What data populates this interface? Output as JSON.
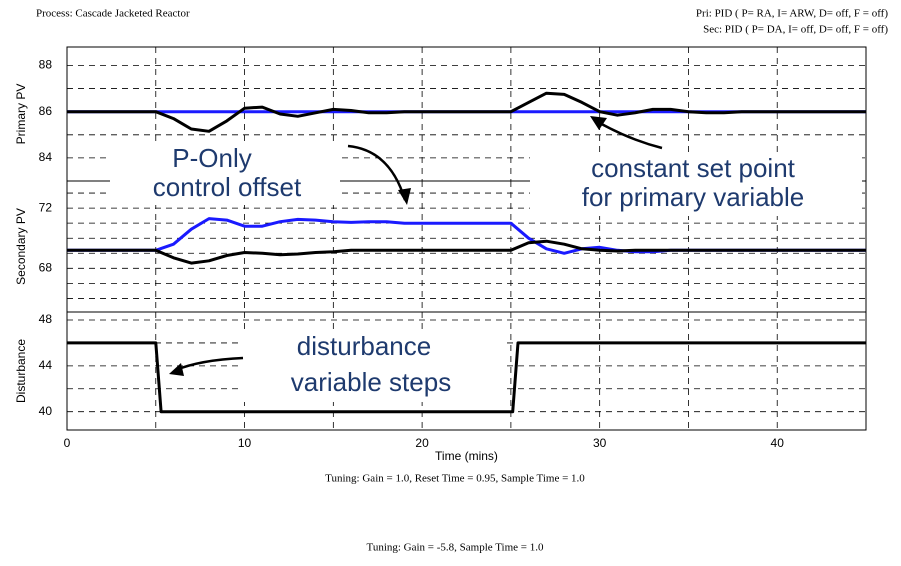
{
  "process": "Process: Cascade Jacketed Reactor",
  "primary_controller": "Pri: PID ( P= RA, I= ARW, D= off, F = off)",
  "secondary_controller": "Sec: PID ( P= DA, I= off, D= off, F = off)",
  "tunings": [
    "Tuning: Gain = 1.0, Reset Time = 0.95, Sample Time = 1.0",
    "Tuning: Gain = -5.8, Sample Time = 1.0"
  ],
  "chart_data": [
    {
      "type": "line",
      "ylabel": "Primary PV",
      "x": [
        0,
        1,
        2,
        3,
        4,
        5,
        6,
        7,
        8,
        9,
        10,
        11,
        12,
        13,
        14,
        15,
        16,
        17,
        18,
        19,
        20,
        21,
        22,
        23,
        24,
        25,
        26,
        27,
        28,
        29,
        30,
        31,
        32,
        33,
        34,
        35,
        36,
        37,
        38,
        39,
        40,
        41,
        42,
        43,
        44,
        45
      ],
      "xlim": [
        0,
        45
      ],
      "xticks": [
        0,
        10,
        20,
        30,
        40
      ],
      "xminor": [
        5,
        15,
        25,
        35
      ],
      "ylim": [
        83,
        88.8
      ],
      "yticks": [
        84,
        86,
        88
      ],
      "yminor": [
        85,
        87
      ],
      "series": [
        {
          "color": "#1a1aff",
          "values": [
            86,
            86,
            86,
            86,
            86,
            86,
            86,
            86,
            86,
            86,
            86,
            86,
            86,
            86,
            86,
            86,
            86,
            86,
            86,
            86,
            86,
            86,
            86,
            86,
            86,
            86,
            86,
            86,
            86,
            86,
            86,
            86,
            86,
            86,
            86,
            86,
            86,
            86,
            86,
            86,
            86,
            86,
            86,
            86,
            86,
            86
          ]
        },
        {
          "color": "#000000",
          "values": [
            86,
            86,
            86,
            86,
            86,
            86,
            85.7,
            85.25,
            85.15,
            85.6,
            86.15,
            86.2,
            85.9,
            85.8,
            85.95,
            86.1,
            86.05,
            85.95,
            85.95,
            86,
            86,
            86,
            86,
            86,
            86,
            86,
            86.4,
            86.8,
            86.75,
            86.4,
            86,
            85.85,
            85.95,
            86.1,
            86.1,
            86,
            85.95,
            85.95,
            86,
            86,
            86,
            86,
            86,
            86,
            86,
            86
          ]
        }
      ],
      "annotations": [
        "constant set point",
        "for primary variable"
      ]
    },
    {
      "type": "line",
      "ylabel": "Secondary PV",
      "x": [
        0,
        1,
        2,
        3,
        4,
        5,
        6,
        7,
        8,
        9,
        10,
        11,
        12,
        13,
        14,
        15,
        16,
        17,
        18,
        19,
        20,
        21,
        22,
        23,
        24,
        25,
        26,
        27,
        28,
        29,
        30,
        31,
        32,
        33,
        34,
        35,
        36,
        37,
        38,
        39,
        40,
        41,
        42,
        43,
        44,
        45
      ],
      "xlim": [
        0,
        45
      ],
      "xticks": [
        0,
        10,
        20,
        30,
        40
      ],
      "xminor": [
        5,
        15,
        25,
        35
      ],
      "ylim": [
        65.1,
        73.8
      ],
      "yticks": [
        68,
        72
      ],
      "yminor": [
        66,
        67,
        69,
        70,
        71,
        73
      ],
      "series": [
        {
          "color": "#1a1aff",
          "values": [
            69.2,
            69.2,
            69.2,
            69.2,
            69.2,
            69.2,
            69.6,
            70.6,
            71.3,
            71.2,
            70.8,
            70.8,
            71.1,
            71.25,
            71.2,
            71.1,
            71.05,
            71.1,
            71.1,
            71,
            71,
            71,
            71,
            71,
            71,
            71,
            70,
            69.3,
            69,
            69.3,
            69.4,
            69.2,
            69.1,
            69.1,
            69.2,
            69.2,
            69.2,
            69.2,
            69.2,
            69.2,
            69.2,
            69.2,
            69.2,
            69.2,
            69.2,
            69.2
          ]
        },
        {
          "color": "#000000",
          "values": [
            69.2,
            69.2,
            69.2,
            69.2,
            69.2,
            69.2,
            68.7,
            68.35,
            68.5,
            68.85,
            69.05,
            69,
            68.9,
            68.95,
            69.05,
            69.1,
            69.2,
            69.2,
            69.2,
            69.2,
            69.2,
            69.2,
            69.2,
            69.2,
            69.2,
            69.2,
            69.7,
            69.8,
            69.6,
            69.3,
            69.2,
            69.15,
            69.2,
            69.2,
            69.2,
            69.2,
            69.2,
            69.2,
            69.2,
            69.2,
            69.2,
            69.2,
            69.2,
            69.2,
            69.2,
            69.2
          ]
        }
      ],
      "annotations": [
        "P-Only",
        "control offset"
      ]
    },
    {
      "type": "line",
      "ylabel": "Disturbance",
      "xlabel": "Time (mins)",
      "x": [
        0,
        5,
        5.3,
        25.1,
        25.4,
        45
      ],
      "xlim": [
        0,
        45
      ],
      "xticks": [
        0,
        10,
        20,
        30,
        40
      ],
      "xminor": [
        5,
        15,
        25,
        35
      ],
      "ylim": [
        38.4,
        48.7
      ],
      "yticks": [
        40,
        44,
        48
      ],
      "yminor": [
        42,
        46
      ],
      "series": [
        {
          "color": "#000000",
          "values": [
            46,
            46,
            40,
            40,
            46,
            46
          ]
        }
      ],
      "annotations": [
        "disturbance",
        "variable steps"
      ]
    }
  ]
}
